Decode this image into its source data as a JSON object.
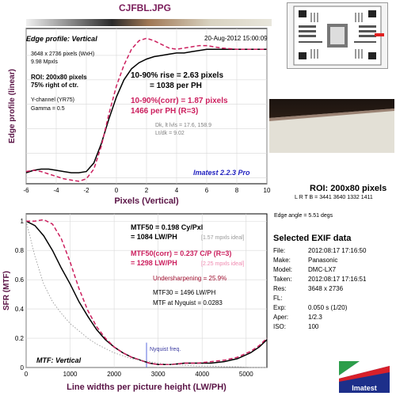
{
  "filename": "CJFBL.JPG",
  "chart_data": [
    {
      "type": "line",
      "title": "Edge profile: Vertical",
      "date": "20-Aug-2012 15:00:09",
      "xlabel": "Pixels (Vertical)",
      "ylabel": "Edge profile (linear)",
      "xlim": [
        -6,
        10
      ],
      "ylim": [
        -0.05,
        1.22
      ],
      "x_ticks": [
        -6,
        -4,
        -2,
        0,
        2,
        4,
        6,
        8,
        10
      ],
      "info_lines": [
        "3648 x 2736 pixels (WxH)",
        "9.98 Mpxls"
      ],
      "roi_lines": [
        "ROI: 200x80 pixels",
        "75% right of ctr."
      ],
      "channel_lines": [
        "Y-channel (YR75)",
        "Gamma = 0.5"
      ],
      "rise_lines": [
        "10-90% rise = 2.63 pixels",
        "= 1038 per PH"
      ],
      "corr_lines": [
        "10-90%(corr) = 1.87 pixels",
        "1466 per PH  (R=3)"
      ],
      "dk_lines": [
        "Dk, lt lvls = 17.6, 158.9",
        "Lt/dk = 9.02"
      ],
      "brand": "Imatest 2.2.3 Pro",
      "series": [
        {
          "color": "#000000",
          "x": [
            -6,
            -5.5,
            -5,
            -4.5,
            -4,
            -3.5,
            -3,
            -2.5,
            -2,
            -1.5,
            -1,
            -0.5,
            0,
            0.5,
            1,
            1.5,
            2,
            2.5,
            3,
            3.5,
            4,
            4.5,
            5,
            5.5,
            6,
            7,
            8,
            9,
            10
          ],
          "y": [
            0.04,
            0.06,
            0.07,
            0.07,
            0.06,
            0.05,
            0.04,
            0.04,
            0.05,
            0.12,
            0.28,
            0.48,
            0.66,
            0.8,
            0.89,
            0.94,
            0.97,
            0.99,
            1.0,
            1.01,
            1.02,
            1.02,
            1.03,
            1.04,
            1.05,
            1.05,
            1.05,
            1.05,
            1.05
          ]
        },
        {
          "color": "#cc1f5e",
          "x": [
            -6,
            -5.5,
            -5,
            -4.5,
            -4,
            -3.5,
            -3,
            -2.5,
            -2,
            -1.5,
            -1,
            -0.5,
            0,
            0.5,
            1,
            1.5,
            2,
            2.5,
            3,
            3.5,
            4,
            4.5,
            5,
            5.5,
            6,
            7,
            8,
            9,
            10
          ],
          "y": [
            0.05,
            0.06,
            0.05,
            0.03,
            0.01,
            -0.01,
            -0.02,
            -0.03,
            -0.01,
            0.07,
            0.26,
            0.52,
            0.75,
            0.92,
            1.05,
            1.12,
            1.14,
            1.12,
            1.09,
            1.06,
            1.05,
            1.06,
            1.07,
            1.08,
            1.08,
            1.06,
            1.05,
            1.05,
            1.05
          ]
        }
      ]
    },
    {
      "type": "line",
      "title": "MTF: Vertical",
      "xlabel": "Line widths per picture height (LW/PH)",
      "ylabel": "SFR (MTF)",
      "xlim": [
        0,
        5472
      ],
      "ylim": [
        0,
        1.05
      ],
      "x_ticks": [
        0,
        1000,
        2000,
        3000,
        4000,
        5000
      ],
      "y_ticks": [
        0,
        0.2,
        0.4,
        0.6,
        0.8,
        1
      ],
      "nyquist": 2736,
      "nyquist_label": "Nyquist freq.",
      "mtf50": {
        "line1": "MTF50 = 0.198 Cy/Pxl",
        "line2": "= 1084 LW/PH",
        "note": "[1.57 mpxls ideal]"
      },
      "mtf50c": {
        "line1": "MTF50(corr) = 0.237 C/P  (R=3)",
        "line2": "= 1298 LW/PH",
        "note": "[2.25 mpxls ideal]"
      },
      "undersharp": "Undersharpening = 25.9%",
      "mtf30": "MTF30 = 1496 LW/PH",
      "nyq_value": "MTF at Nyquist = 0.0283",
      "series": [
        {
          "color": "#000000",
          "x": [
            0,
            200,
            400,
            600,
            800,
            1000,
            1200,
            1400,
            1600,
            1800,
            2000,
            2200,
            2400,
            2600,
            2800,
            3000,
            3300,
            3600,
            3900,
            4200,
            4500,
            4800,
            5100,
            5300,
            5472
          ],
          "y": [
            1.0,
            0.97,
            0.9,
            0.8,
            0.68,
            0.57,
            0.45,
            0.35,
            0.26,
            0.19,
            0.14,
            0.1,
            0.07,
            0.05,
            0.03,
            0.02,
            0.02,
            0.03,
            0.03,
            0.03,
            0.04,
            0.06,
            0.1,
            0.14,
            0.19
          ]
        },
        {
          "color": "#cc1f5e",
          "x": [
            0,
            200,
            400,
            600,
            800,
            1000,
            1200,
            1400,
            1600,
            1800,
            2000,
            2200,
            2400,
            2600,
            2800,
            3000,
            3300,
            3600,
            3900,
            4200,
            4500,
            4800,
            5100,
            5300,
            5472
          ],
          "y": [
            1.0,
            1.0,
            1.01,
            0.98,
            0.88,
            0.72,
            0.54,
            0.39,
            0.28,
            0.2,
            0.14,
            0.1,
            0.07,
            0.05,
            0.03,
            0.02,
            0.02,
            0.03,
            0.03,
            0.04,
            0.05,
            0.07,
            0.11,
            0.15,
            0.2
          ]
        },
        {
          "color": "#9a9a9a",
          "x": [
            0,
            200,
            400,
            600,
            800,
            1000,
            1200,
            1400,
            1600,
            1800,
            2000,
            2200,
            2400,
            2600,
            2800,
            3000,
            3300,
            3600,
            3900,
            4200,
            4500,
            4800,
            5100,
            5472
          ],
          "y": [
            1.0,
            0.76,
            0.57,
            0.45,
            0.37,
            0.3,
            0.25,
            0.2,
            0.16,
            0.13,
            0.1,
            0.08,
            0.06,
            0.05,
            0.04,
            0.03,
            0.02,
            0.015,
            0.01,
            0.01,
            0.005,
            0.005,
            0.0,
            0.0
          ]
        }
      ]
    }
  ],
  "roi": {
    "title": "ROI: 200x80 pixels",
    "coords": "L R T B = 3441 3640 1332 1411",
    "edge_angle": "Edge angle = 5.51 degs"
  },
  "exif": {
    "heading": "Selected EXIF data",
    "rows": [
      {
        "k": "File:",
        "v": "2012:08:17 17:16:50"
      },
      {
        "k": "Make:",
        "v": "Panasonic"
      },
      {
        "k": "Model:",
        "v": "DMC-LX7"
      },
      {
        "k": "Taken:",
        "v": "2012:08:17 17:16:51"
      },
      {
        "k": "Res:",
        "v": "3648 x 2736"
      },
      {
        "k": "FL:",
        "v": ""
      },
      {
        "k": "Exp:",
        "v": "0.050 s  (1/20)"
      },
      {
        "k": "Aper:",
        "v": "1/2.3"
      },
      {
        "k": "ISO:",
        "v": "100"
      }
    ]
  },
  "logo_text": "Imatest",
  "colors": {
    "title": "#7a1c5a",
    "axis_label": "#5a1446",
    "accent": "#cc1f5e",
    "brand": "#1f1fbf"
  }
}
